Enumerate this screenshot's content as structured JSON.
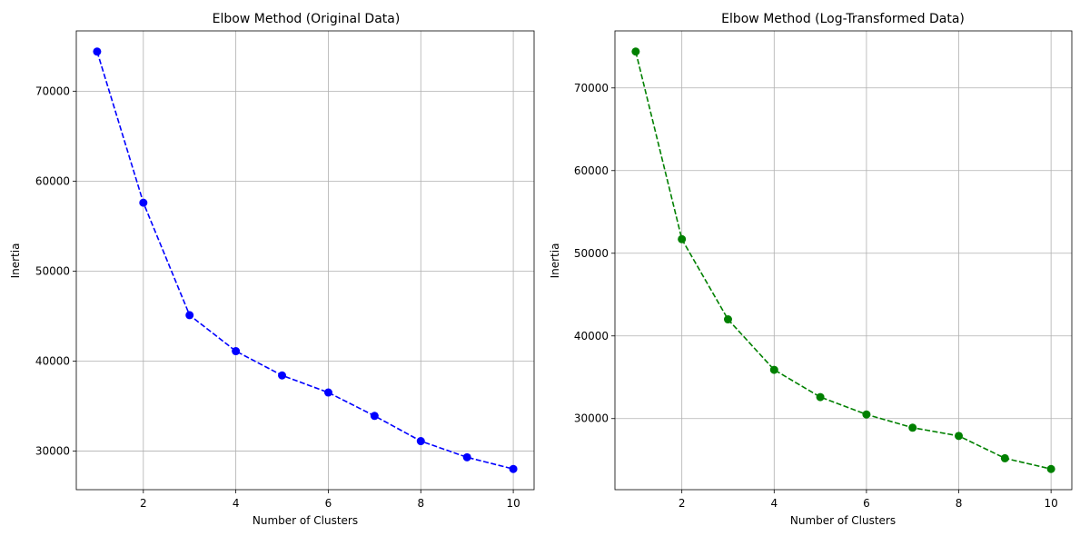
{
  "chart_data": [
    {
      "type": "line",
      "title": "Elbow Method (Original Data)",
      "xlabel": "Number of Clusters",
      "ylabel": "Inertia",
      "x": [
        1,
        2,
        3,
        4,
        5,
        6,
        7,
        8,
        9,
        10
      ],
      "series": [
        {
          "values": [
            74400,
            57600,
            45100,
            41100,
            38400,
            36500,
            33900,
            31100,
            29300,
            28000
          ],
          "color": "#0000ff",
          "line_style": "dashed",
          "marker": "circle"
        }
      ],
      "xlim": [
        0.55,
        10.45
      ],
      "ylim": [
        25700,
        76700
      ],
      "xticks": [
        2,
        4,
        6,
        8,
        10
      ],
      "yticks": [
        30000,
        40000,
        50000,
        60000,
        70000
      ],
      "grid": true
    },
    {
      "type": "line",
      "title": "Elbow Method (Log-Transformed Data)",
      "xlabel": "Number of Clusters",
      "ylabel": "Inertia",
      "x": [
        1,
        2,
        3,
        4,
        5,
        6,
        7,
        8,
        9,
        10
      ],
      "series": [
        {
          "values": [
            74400,
            51700,
            42000,
            35900,
            32600,
            30500,
            28900,
            27900,
            25200,
            23900
          ],
          "color": "#008000",
          "line_style": "dashed",
          "marker": "circle"
        }
      ],
      "xlim": [
        0.55,
        10.45
      ],
      "ylim": [
        21400,
        76900
      ],
      "xticks": [
        2,
        4,
        6,
        8,
        10
      ],
      "yticks": [
        30000,
        40000,
        50000,
        60000,
        70000
      ],
      "grid": true
    }
  ]
}
